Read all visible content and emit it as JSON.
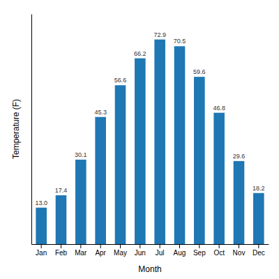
{
  "chart_data": {
    "type": "bar",
    "categories": [
      "Jan",
      "Feb",
      "Mar",
      "Apr",
      "May",
      "Jun",
      "Jul",
      "Aug",
      "Sep",
      "Oct",
      "Nov",
      "Dec"
    ],
    "values": [
      13.0,
      17.4,
      30.1,
      45.3,
      56.6,
      66.2,
      72.9,
      70.5,
      59.6,
      46.8,
      29.6,
      18.2
    ],
    "value_labels": [
      "13.0",
      "17.4",
      "30.1",
      "45.3",
      "56.6",
      "66.2",
      "72.9",
      "70.5",
      "59.6",
      "46.8",
      "29.6",
      "18.2"
    ],
    "data_labels": true,
    "xlabel": "Month",
    "ylabel": "Temperature (F)",
    "ylim": [
      0,
      82
    ],
    "tick_labels": "x",
    "grid": false
  }
}
